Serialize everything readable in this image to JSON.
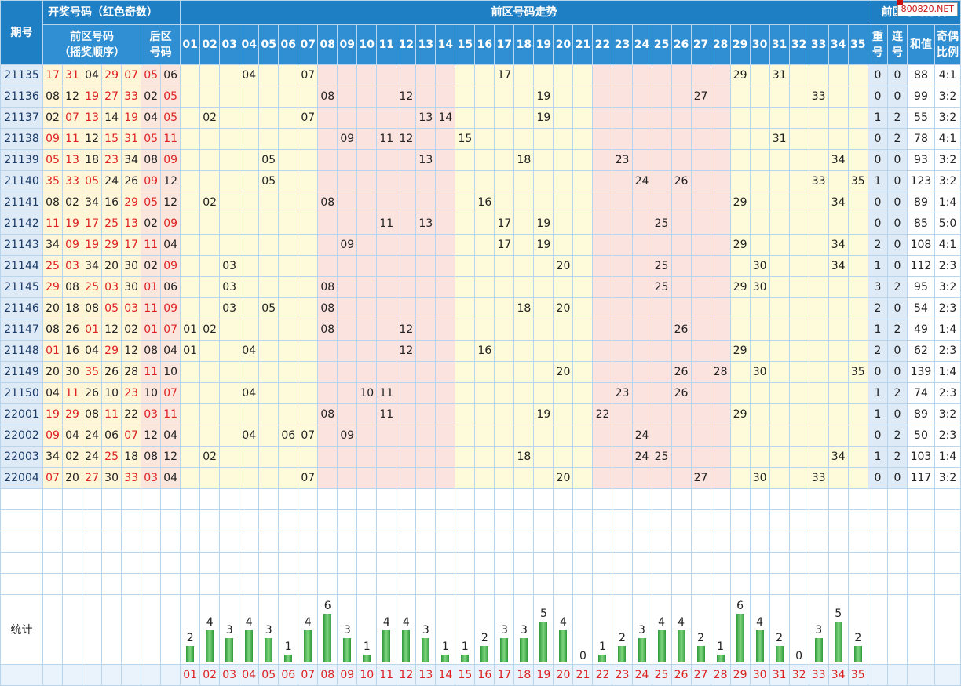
{
  "header": {
    "period_label": "期号",
    "draw_group": "开奖号码（红色奇数）",
    "front_label_1": "前区号码",
    "front_label_2": "（摇奖顺序）",
    "back_label_1": "后区",
    "back_label_2": "号码",
    "trend_title": "前区号码走势",
    "analysis_title": "前区号码分析",
    "analysis_cols": [
      {
        "a": "重",
        "b": "号"
      },
      {
        "a": "连",
        "b": "号"
      },
      {
        "a": "和值",
        "b": ""
      },
      {
        "a": "奇偶",
        "b": "比例"
      }
    ],
    "logo": "800820.NET"
  },
  "numbers": [
    "01",
    "02",
    "03",
    "04",
    "05",
    "06",
    "07",
    "08",
    "09",
    "10",
    "11",
    "12",
    "13",
    "14",
    "15",
    "16",
    "17",
    "18",
    "19",
    "20",
    "21",
    "22",
    "23",
    "24",
    "25",
    "26",
    "27",
    "28",
    "29",
    "30",
    "31",
    "32",
    "33",
    "34",
    "35"
  ],
  "rows": [
    {
      "period": "21135",
      "front": [
        "17",
        "31",
        "04",
        "29",
        "07"
      ],
      "back": [
        "05",
        "06"
      ],
      "repeat": "0",
      "consec": "0",
      "sum": "88",
      "ratio": "4:1"
    },
    {
      "period": "21136",
      "front": [
        "08",
        "12",
        "19",
        "27",
        "33"
      ],
      "back": [
        "02",
        "05"
      ],
      "repeat": "0",
      "consec": "0",
      "sum": "99",
      "ratio": "3:2"
    },
    {
      "period": "21137",
      "front": [
        "02",
        "07",
        "13",
        "14",
        "19"
      ],
      "back": [
        "04",
        "05"
      ],
      "repeat": "1",
      "consec": "2",
      "sum": "55",
      "ratio": "3:2"
    },
    {
      "period": "21138",
      "front": [
        "09",
        "11",
        "12",
        "15",
        "31"
      ],
      "back": [
        "05",
        "11"
      ],
      "repeat": "0",
      "consec": "2",
      "sum": "78",
      "ratio": "4:1"
    },
    {
      "period": "21139",
      "front": [
        "05",
        "13",
        "18",
        "23",
        "34"
      ],
      "back": [
        "08",
        "09"
      ],
      "repeat": "0",
      "consec": "0",
      "sum": "93",
      "ratio": "3:2"
    },
    {
      "period": "21140",
      "front": [
        "35",
        "33",
        "05",
        "24",
        "26"
      ],
      "back": [
        "09",
        "12"
      ],
      "repeat": "1",
      "consec": "0",
      "sum": "123",
      "ratio": "3:2"
    },
    {
      "period": "21141",
      "front": [
        "08",
        "02",
        "34",
        "16",
        "29"
      ],
      "back": [
        "05",
        "12"
      ],
      "repeat": "0",
      "consec": "0",
      "sum": "89",
      "ratio": "1:4"
    },
    {
      "period": "21142",
      "front": [
        "11",
        "19",
        "17",
        "25",
        "13"
      ],
      "back": [
        "02",
        "09"
      ],
      "repeat": "0",
      "consec": "0",
      "sum": "85",
      "ratio": "5:0"
    },
    {
      "period": "21143",
      "front": [
        "34",
        "09",
        "19",
        "29",
        "17"
      ],
      "back": [
        "11",
        "04"
      ],
      "repeat": "2",
      "consec": "0",
      "sum": "108",
      "ratio": "4:1"
    },
    {
      "period": "21144",
      "front": [
        "25",
        "03",
        "34",
        "20",
        "30"
      ],
      "back": [
        "02",
        "09"
      ],
      "repeat": "1",
      "consec": "0",
      "sum": "112",
      "ratio": "2:3"
    },
    {
      "period": "21145",
      "front": [
        "29",
        "08",
        "25",
        "03",
        "30"
      ],
      "back": [
        "01",
        "06"
      ],
      "repeat": "3",
      "consec": "2",
      "sum": "95",
      "ratio": "3:2"
    },
    {
      "period": "21146",
      "front": [
        "20",
        "18",
        "08",
        "05",
        "03"
      ],
      "back": [
        "11",
        "09"
      ],
      "repeat": "2",
      "consec": "0",
      "sum": "54",
      "ratio": "2:3"
    },
    {
      "period": "21147",
      "front": [
        "08",
        "26",
        "01",
        "12",
        "02"
      ],
      "back": [
        "01",
        "07"
      ],
      "repeat": "1",
      "consec": "2",
      "sum": "49",
      "ratio": "1:4"
    },
    {
      "period": "21148",
      "front": [
        "01",
        "16",
        "04",
        "29",
        "12"
      ],
      "back": [
        "08",
        "04"
      ],
      "repeat": "2",
      "consec": "0",
      "sum": "62",
      "ratio": "2:3"
    },
    {
      "period": "21149",
      "front": [
        "20",
        "30",
        "35",
        "26",
        "28"
      ],
      "back": [
        "11",
        "10"
      ],
      "repeat": "0",
      "consec": "0",
      "sum": "139",
      "ratio": "1:4"
    },
    {
      "period": "21150",
      "front": [
        "04",
        "11",
        "26",
        "10",
        "23"
      ],
      "back": [
        "10",
        "07"
      ],
      "repeat": "1",
      "consec": "2",
      "sum": "74",
      "ratio": "2:3"
    },
    {
      "period": "22001",
      "front": [
        "19",
        "29",
        "08",
        "11",
        "22"
      ],
      "back": [
        "03",
        "11"
      ],
      "repeat": "1",
      "consec": "0",
      "sum": "89",
      "ratio": "3:2"
    },
    {
      "period": "22002",
      "front": [
        "09",
        "04",
        "24",
        "06",
        "07"
      ],
      "back": [
        "12",
        "04"
      ],
      "repeat": "0",
      "consec": "2",
      "sum": "50",
      "ratio": "2:3"
    },
    {
      "period": "22003",
      "front": [
        "34",
        "02",
        "24",
        "25",
        "18"
      ],
      "back": [
        "08",
        "12"
      ],
      "repeat": "1",
      "consec": "2",
      "sum": "103",
      "ratio": "1:4"
    },
    {
      "period": "22004",
      "front": [
        "07",
        "20",
        "27",
        "30",
        "33"
      ],
      "back": [
        "03",
        "04"
      ],
      "repeat": "0",
      "consec": "0",
      "sum": "117",
      "ratio": "3:2"
    }
  ],
  "stats": {
    "label": "统计",
    "counts": [
      2,
      4,
      3,
      4,
      3,
      1,
      4,
      6,
      3,
      1,
      4,
      4,
      3,
      1,
      1,
      2,
      3,
      3,
      5,
      4,
      0,
      1,
      2,
      3,
      4,
      4,
      2,
      1,
      6,
      4,
      2,
      0,
      3,
      5,
      2
    ]
  },
  "chart_data": {
    "type": "bar",
    "categories": [
      "01",
      "02",
      "03",
      "04",
      "05",
      "06",
      "07",
      "08",
      "09",
      "10",
      "11",
      "12",
      "13",
      "14",
      "15",
      "16",
      "17",
      "18",
      "19",
      "20",
      "21",
      "22",
      "23",
      "24",
      "25",
      "26",
      "27",
      "28",
      "29",
      "30",
      "31",
      "32",
      "33",
      "34",
      "35"
    ],
    "values": [
      2,
      4,
      3,
      4,
      3,
      1,
      4,
      6,
      3,
      1,
      4,
      4,
      3,
      1,
      1,
      2,
      3,
      3,
      5,
      4,
      0,
      1,
      2,
      3,
      4,
      4,
      2,
      1,
      6,
      4,
      2,
      0,
      3,
      5,
      2
    ],
    "ylabel": "统计",
    "ylim": [
      0,
      6
    ]
  },
  "colors": {
    "header_blue": "#1f7fc4",
    "odd_red": "#dd2222",
    "zone_yellow": "#fdfbd9",
    "zone_pink": "#fbe3e0",
    "bar_green": "#3aa845"
  }
}
